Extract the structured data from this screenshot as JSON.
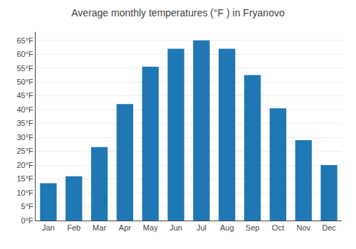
{
  "chart_data": {
    "type": "bar",
    "title": "Average monthly temperatures (°F ) in Fryanovo",
    "categories": [
      "Jan",
      "Feb",
      "Mar",
      "Apr",
      "May",
      "Jun",
      "Jul",
      "Aug",
      "Sep",
      "Oct",
      "Nov",
      "Dec"
    ],
    "values": [
      13.5,
      16.0,
      26.5,
      42.0,
      55.5,
      62.0,
      65.0,
      62.0,
      52.5,
      40.5,
      29.0,
      20.0
    ],
    "ylim": [
      0,
      68
    ],
    "yticks": [
      {
        "value": 0,
        "label": "0°F"
      },
      {
        "value": 5,
        "label": "5°F"
      },
      {
        "value": 10,
        "label": "10°F"
      },
      {
        "value": 15,
        "label": "15°F"
      },
      {
        "value": 20,
        "label": "20°F"
      },
      {
        "value": 25,
        "label": "25°F"
      },
      {
        "value": 30,
        "label": "30°F"
      },
      {
        "value": 35,
        "label": "35°F"
      },
      {
        "value": 40,
        "label": "40°F"
      },
      {
        "value": 45,
        "label": "45°F"
      },
      {
        "value": 50,
        "label": "50°F"
      },
      {
        "value": 55,
        "label": "55°F"
      },
      {
        "value": 60,
        "label": "60°F"
      },
      {
        "value": 65,
        "label": "65°F"
      }
    ],
    "grid": true
  }
}
